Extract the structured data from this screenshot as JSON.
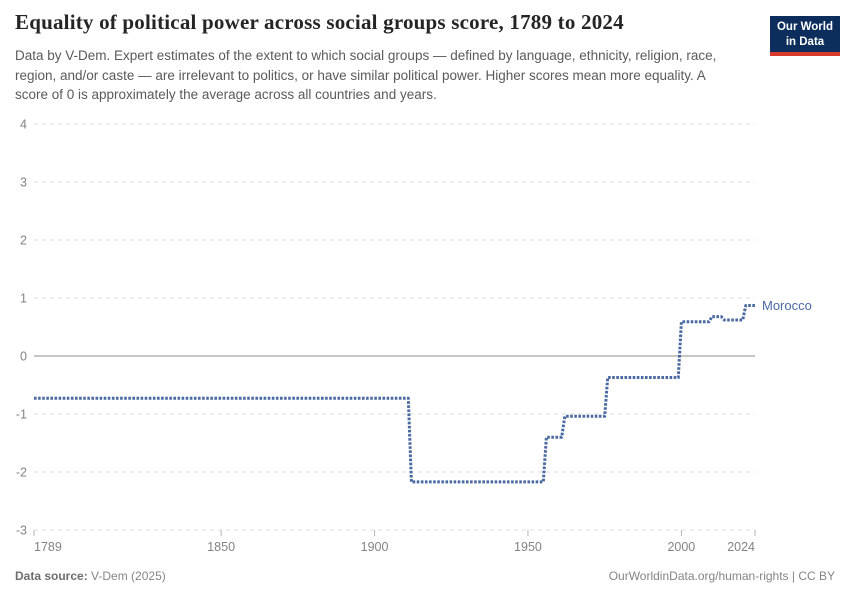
{
  "header": {
    "title": "Equality of political power across social groups score, 1789 to 2024",
    "subtitle": "Data by V-Dem. Expert estimates of the extent to which social groups — defined by language, ethnicity, religion, race, region, and/or caste — are irrelevant to politics, or have similar political power. Higher scores mean more equality. A score of 0 is approximately the average across all countries and years.",
    "logo": {
      "line1": "Our World",
      "line2": "in Data",
      "bg_color": "#0d2e5c",
      "accent_color": "#d93a2b"
    }
  },
  "chart_data": {
    "type": "line",
    "title": "Equality of political power across social groups score, 1789 to 2024",
    "entity_label": "Morocco",
    "line_color": "#4a69a2",
    "xlabel": "",
    "ylabel": "",
    "x_axis": {
      "min": 1789,
      "max": 2024,
      "ticks": [
        1789,
        1850,
        1900,
        1950,
        2000,
        2024
      ]
    },
    "y_axis": {
      "min": -3,
      "max": 4,
      "ticks": [
        4,
        3,
        2,
        1,
        0,
        -1,
        -2,
        -3
      ],
      "zero_line": true
    },
    "grid": {
      "horizontal": true,
      "style": "dashed",
      "color": "#dcdcdc",
      "zero_line_color": "#8e8e8e"
    },
    "series": [
      {
        "name": "Morocco",
        "color": "#4a69a2",
        "steps": [
          {
            "from": 1789,
            "to": 1911,
            "value": -0.73
          },
          {
            "from": 1912,
            "to": 1955,
            "value": -2.17
          },
          {
            "from": 1956,
            "to": 1961,
            "value": -1.4
          },
          {
            "from": 1962,
            "to": 1975,
            "value": -1.04
          },
          {
            "from": 1976,
            "to": 1999,
            "value": -0.37
          },
          {
            "from": 2000,
            "to": 2009,
            "value": 0.59
          },
          {
            "from": 2010,
            "to": 2013,
            "value": 0.68
          },
          {
            "from": 2014,
            "to": 2020,
            "value": 0.62
          },
          {
            "from": 2021,
            "to": 2024,
            "value": 0.87
          }
        ]
      }
    ],
    "axis_text_color": "#838383",
    "tick_mark_color": "#b5b5b5"
  },
  "footer": {
    "source_label": "Data source:",
    "source_value": "V-Dem (2025)",
    "credit": "OurWorldinData.org/human-rights | CC BY"
  }
}
